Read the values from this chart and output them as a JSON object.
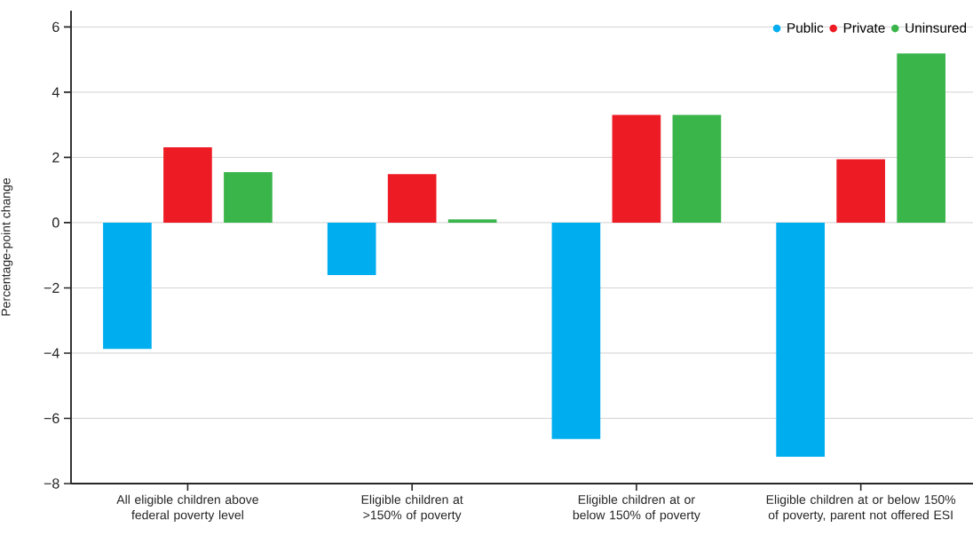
{
  "chart_data": {
    "type": "bar",
    "ylabel": "Percentage-point change",
    "categories": [
      "All eligible children above federal poverty level",
      "Eligible children at >150% of poverty",
      "Eligible children at or below 150% of poverty",
      "Eligible children at or below 150% of poverty, parent not offered ESI"
    ],
    "series": [
      {
        "name": "Public",
        "color": "#00aeef",
        "values": [
          -3.87,
          -1.61,
          -6.63,
          -7.18
        ]
      },
      {
        "name": "Private",
        "color": "#ed1c24",
        "values": [
          2.31,
          1.49,
          3.3,
          1.94
        ]
      },
      {
        "name": "Uninsured",
        "color": "#39b54a",
        "values": [
          1.55,
          0.1,
          3.3,
          5.19
        ]
      }
    ],
    "ylim": [
      -8,
      6.5
    ],
    "yticks": [
      {
        "value": -8,
        "label": "−8"
      },
      {
        "value": -6,
        "label": "−6"
      },
      {
        "value": -4,
        "label": "−4"
      },
      {
        "value": -2,
        "label": "−2"
      },
      0,
      2,
      4,
      6
    ],
    "grid": "y",
    "legend": "top right",
    "marker": "circle"
  }
}
